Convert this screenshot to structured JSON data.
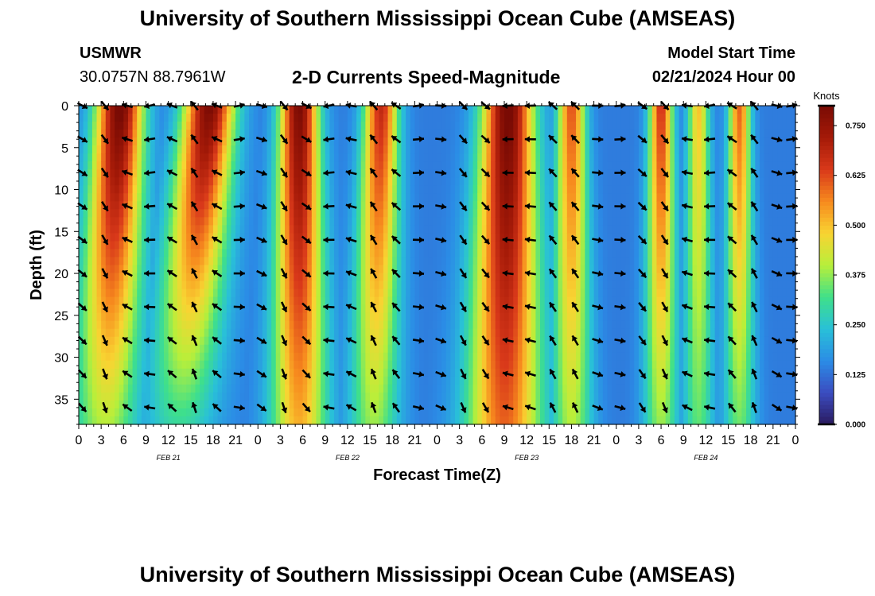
{
  "page": {
    "title": "University of Southern Mississippi Ocean Cube (AMSEAS)",
    "footer_title": "University of Southern Mississippi Ocean Cube (AMSEAS)",
    "station": "USMWR",
    "coords": "30.0757N  88.7961W",
    "plot_title": "2-D Currents Speed-Magnitude",
    "model_start_label": "Model Start Time",
    "model_start_value": "02/21/2024 Hour 00"
  },
  "chart_data": {
    "type": "heatmap",
    "title": "2-D Currents Speed-Magnitude",
    "xlabel": "Forecast Time(Z)",
    "ylabel": "Depth (ft)",
    "x_range_hours": [
      0,
      96
    ],
    "x_tick_step_hours": 3,
    "x_tick_labels": [
      "0",
      "3",
      "6",
      "9",
      "12",
      "15",
      "18",
      "21",
      "0",
      "3",
      "6",
      "9",
      "12",
      "15",
      "18",
      "21",
      "0",
      "3",
      "6",
      "9",
      "12",
      "15",
      "18",
      "21",
      "0",
      "3",
      "6",
      "9",
      "12",
      "15",
      "18",
      "21",
      "0"
    ],
    "day_labels": [
      {
        "hour": 12,
        "label": "FEB 21"
      },
      {
        "hour": 36,
        "label": "FEB 22"
      },
      {
        "hour": 60,
        "label": "FEB 23"
      },
      {
        "hour": 84,
        "label": "FEB 24"
      }
    ],
    "y_range_ft": [
      0,
      38
    ],
    "y_inverted": true,
    "y_ticks": [
      0,
      5,
      10,
      15,
      20,
      25,
      30,
      35
    ],
    "colorbar": {
      "unit": "Knots",
      "min": 0.0,
      "max": 0.8,
      "ticks": [
        0.0,
        0.125,
        0.25,
        0.375,
        0.5,
        0.625,
        0.75
      ],
      "tick_labels": [
        "0.000",
        "0.125",
        "0.250",
        "0.375",
        "0.500",
        "0.625",
        "0.750"
      ],
      "colors": [
        "#2a1a5e",
        "#3b4cc0",
        "#2b8ce6",
        "#29c0d8",
        "#3fe08a",
        "#b8ef3a",
        "#f8d432",
        "#f78a1e",
        "#d9391a",
        "#a51a08",
        "#7a0b04"
      ]
    },
    "speed_peaks": [
      {
        "hour": 5.5,
        "surface": 0.82,
        "bottom": 0.4,
        "width": 2.2,
        "tilt": -2.0
      },
      {
        "hour": 17.5,
        "surface": 0.8,
        "bottom": 0.3,
        "width": 2.4,
        "tilt": -4.0
      },
      {
        "hour": 29.5,
        "surface": 0.8,
        "bottom": 0.52,
        "width": 1.8,
        "tilt": 0.0
      },
      {
        "hour": 40.5,
        "surface": 0.68,
        "bottom": 0.38,
        "width": 1.6,
        "tilt": -1.0
      },
      {
        "hour": 57.5,
        "surface": 0.82,
        "bottom": 0.6,
        "width": 2.4,
        "tilt": -0.5
      },
      {
        "hour": 66.0,
        "surface": 0.62,
        "bottom": 0.4,
        "width": 1.3,
        "tilt": 0.0
      },
      {
        "hour": 78.0,
        "surface": 0.66,
        "bottom": 0.38,
        "width": 1.1,
        "tilt": 0.0
      },
      {
        "hour": 83.0,
        "surface": 0.5,
        "bottom": 0.34,
        "width": 1.0,
        "tilt": 0.0
      },
      {
        "hour": 88.5,
        "surface": 0.6,
        "bottom": 0.35,
        "width": 1.0,
        "tilt": 0.0
      }
    ],
    "arrow_hours": [
      0.5,
      3.5,
      6.5,
      9.5,
      12.5,
      15.5,
      18.5,
      21.5,
      24.5,
      27.5,
      30.5,
      33.5,
      36.5,
      39.5,
      42.5,
      45.5,
      48.5,
      51.5,
      54.5,
      57.5,
      60.5,
      63.5,
      66.5,
      69.5,
      72.5,
      75.5,
      78.5,
      81.5,
      84.5,
      87.5,
      90.5,
      93.5,
      95.5
    ],
    "arrow_depths": [
      0,
      4,
      8,
      12,
      16,
      20,
      24,
      28,
      32,
      36
    ],
    "arrow_direction_cycle_hours": 24.8
  }
}
